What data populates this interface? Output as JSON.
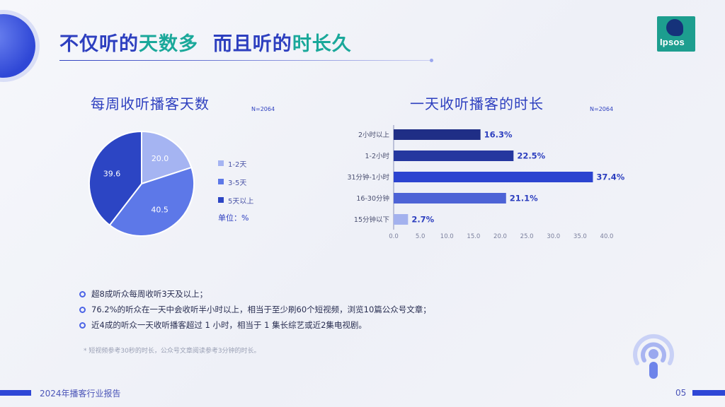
{
  "header": {
    "title_part1": "不仅听的",
    "title_hl1": "天数多",
    "title_part2": "而且听的",
    "title_hl2": "时长久",
    "logo_text": "Ipsos"
  },
  "chart_data": [
    {
      "type": "pie",
      "title": "每周收听播客天数",
      "n_label": "N=2064",
      "categories": [
        "1-2天",
        "3-5天",
        "5天以上"
      ],
      "values": [
        20.0,
        40.5,
        39.6
      ],
      "value_labels": [
        "20.0",
        "40.5",
        "39.6"
      ],
      "colors": [
        "#a5b4f2",
        "#5d78e8",
        "#2c45c4"
      ],
      "unit_label": "单位：%",
      "legend_position": "right"
    },
    {
      "type": "bar",
      "orientation": "horizontal",
      "title": "一天收听播客的时长",
      "n_label": "N=2064",
      "categories": [
        "2小时以上",
        "1-2小时",
        "31分钟-1小时",
        "16-30分钟",
        "15分钟以下"
      ],
      "values": [
        16.3,
        22.5,
        37.4,
        21.1,
        2.7
      ],
      "value_labels": [
        "16.3%",
        "22.5%",
        "37.4%",
        "21.1%",
        "2.7%"
      ],
      "colors": [
        "#1f2e86",
        "#25379f",
        "#2c44d0",
        "#4d63d6",
        "#a3b1ee"
      ],
      "xlim": [
        0,
        40
      ],
      "xticks": [
        "0.0",
        "5.0",
        "10.0",
        "15.0",
        "20.0",
        "25.0",
        "30.0",
        "35.0",
        "40.0"
      ],
      "grid": false
    }
  ],
  "notes": [
    "超8成听众每周收听3天及以上；",
    "76.2%的听众在一天中会收听半小时以上，相当于至少刷60个短视频，浏览10篇公众号文章；",
    "近4成的听众一天收听播客超过 1 小时，相当于 1 集长综艺或近2集电视剧。"
  ],
  "footnote": "* 短视频参考30秒的时长，公众号文章阅读参考3分钟的时长。",
  "footer": {
    "report_name": "2024年播客行业报告",
    "page_number": "05"
  },
  "icons": {
    "podcast": "podcast-icon"
  }
}
